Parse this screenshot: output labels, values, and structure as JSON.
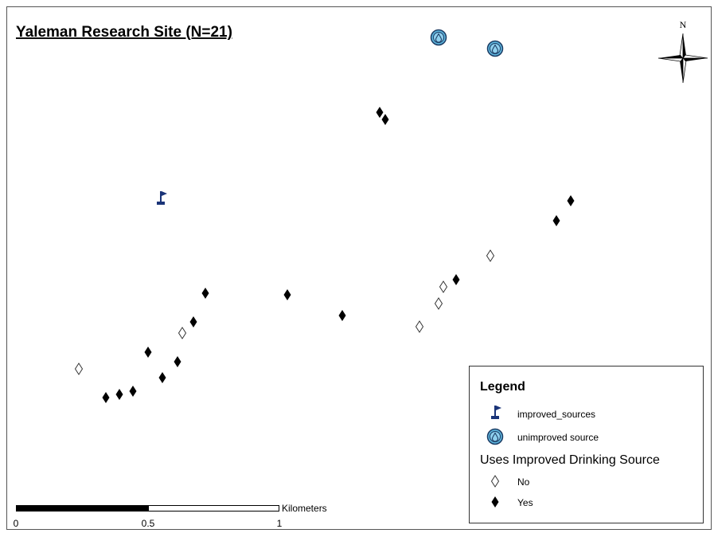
{
  "title": "Yaleman Research Site (N=21)",
  "north_arrow": {
    "label": "N"
  },
  "legend": {
    "title": "Legend",
    "items": [
      "improved_sources",
      "unimproved source"
    ],
    "group": {
      "title": "Uses Improved Drinking Source",
      "items": [
        "No",
        "Yes"
      ]
    }
  },
  "scale_bar": {
    "unit": "Kilometers",
    "labels": [
      "0",
      "0.5",
      "1"
    ]
  }
}
